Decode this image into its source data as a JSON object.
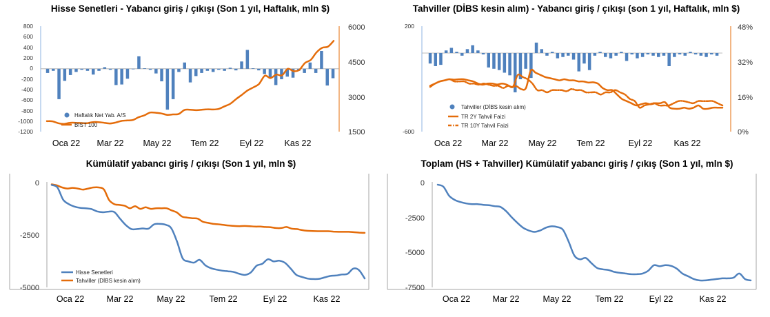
{
  "colors": {
    "blue": "#4F81BD",
    "orange": "#E46C0A",
    "axis": "#8DB3E2",
    "grid": "#A6A6A6"
  },
  "chart_data": [
    {
      "id": "c1",
      "type": "bar",
      "title": "Hisse Senetleri - Yabancı giriş / çıkışı (Son 1 yıl, Haftalık, mln $)",
      "x_ticks": [
        "Oca 22",
        "Mar 22",
        "May 22",
        "Tem 22",
        "Eyl 22",
        "Kas 22"
      ],
      "y_left_ticks": [
        "800",
        "600",
        "400",
        "200",
        "0",
        "-200",
        "-400",
        "-600",
        "-800",
        "-1000",
        "-1200"
      ],
      "y_right_ticks": [
        "6000",
        "4500",
        "3000",
        "1500"
      ],
      "ylim_left": [
        -1200,
        800
      ],
      "ylim_right": [
        1500,
        6000
      ],
      "legend": [
        "Haftalık Net Yab. A/S",
        "BIST 100"
      ],
      "series": [
        {
          "name": "Haftalık Net Yab. A/S",
          "type": "bar",
          "axis": "left",
          "values": [
            -80,
            -40,
            -580,
            -230,
            -120,
            -60,
            -20,
            -40,
            -110,
            -40,
            30,
            -20,
            -310,
            -300,
            -190,
            -10,
            240,
            10,
            -20,
            -90,
            -240,
            -780,
            -580,
            -60,
            120,
            -260,
            -140,
            -80,
            -40,
            -60,
            -20,
            -40,
            20,
            -30,
            140,
            360,
            10,
            -30,
            -100,
            -180,
            -310,
            -200,
            -150,
            -170,
            -40,
            -80,
            120,
            -80,
            340,
            -320,
            -180
          ]
        },
        {
          "name": "BIST 100",
          "type": "line",
          "axis": "right",
          "values": [
            1950,
            1940,
            1860,
            1830,
            1880,
            1880,
            1870,
            1860,
            1910,
            1910,
            1880,
            1850,
            1890,
            1960,
            1980,
            2000,
            2120,
            2200,
            2320,
            2310,
            2280,
            2220,
            2240,
            2260,
            2430,
            2440,
            2420,
            2440,
            2460,
            2450,
            2480,
            2590,
            2700,
            2900,
            3080,
            3270,
            3400,
            3550,
            3900,
            3800,
            3950,
            3920,
            4200,
            4100,
            4150,
            4450,
            4580,
            4900,
            5100,
            5150,
            5400
          ]
        }
      ]
    },
    {
      "id": "c2",
      "type": "bar",
      "title": "Tahviller (DİBS kesin alım) - Yabancı giriş / çıkışı (son 1 yıl, Haftalık, mln $)",
      "x_ticks": [
        "Oca 22",
        "Mar 22",
        "May 22",
        "Tem 22",
        "Eyl 22",
        "Kas 22"
      ],
      "y_left_ticks": [
        "200",
        "-600"
      ],
      "y_right_ticks": [
        "48%",
        "32%",
        "16%",
        "0%"
      ],
      "ylim_left": [
        -600,
        200
      ],
      "ylim_right": [
        0,
        48
      ],
      "legend": [
        "Tahviller (DİBS kesin alım)",
        "TR 2Y Tahvil Faizi",
        "TR 10Y Tahvil Faizi"
      ],
      "series": [
        {
          "name": "Tahviller (DİBS kesin alım)",
          "type": "bar",
          "axis": "left",
          "values": [
            -80,
            -100,
            -90,
            20,
            40,
            10,
            -20,
            30,
            60,
            20,
            -10,
            -110,
            -120,
            -130,
            -150,
            -170,
            -300,
            -200,
            -120,
            -190,
            80,
            30,
            -20,
            10,
            -40,
            -30,
            -20,
            -50,
            -140,
            -80,
            -130,
            -20,
            10,
            -30,
            -40,
            -20,
            10,
            -60,
            -10,
            -40,
            -30,
            -10,
            -20,
            -30,
            -20,
            -100,
            -30,
            -10,
            -20,
            10,
            -10,
            -20,
            -30,
            -10,
            -20
          ]
        },
        {
          "name": "TR 2Y Tahvil Faizi",
          "type": "line",
          "axis": "right",
          "values": [
            21,
            22,
            23,
            23.5,
            24,
            23.8,
            24,
            24,
            23.5,
            23,
            22,
            21.5,
            22,
            22,
            21.6,
            22,
            21.5,
            20.5,
            20.8,
            19.5,
            20,
            28,
            27,
            26,
            25,
            24.5,
            24,
            23.5,
            24,
            23.5,
            23.5,
            23,
            23,
            22.5,
            22.6,
            22,
            20,
            19,
            19,
            17,
            15,
            14,
            13,
            12,
            12.5,
            13,
            12.5,
            13,
            13,
            13.5,
            11,
            10.5,
            10.5,
            11,
            10.5,
            11,
            12,
            10.5,
            10.5,
            11,
            11,
            11
          ]
        },
        {
          "name": "TR 10Y Tahvil Faizi",
          "type": "line",
          "axis": "right",
          "values": [
            20.5,
            22,
            23,
            23.5,
            24,
            23,
            23,
            23,
            22,
            22,
            21.5,
            22,
            21.5,
            21,
            21,
            20,
            21,
            20.5,
            26,
            25,
            24,
            22,
            19,
            19,
            18,
            19,
            19,
            19,
            18.5,
            19.5,
            19,
            19,
            18,
            18,
            18,
            17,
            18,
            18,
            19,
            18,
            17,
            15,
            14,
            11,
            12,
            12.5,
            13,
            12,
            12,
            12,
            13,
            14,
            14,
            13.5,
            13,
            14,
            14,
            14,
            14,
            13,
            12
          ]
        }
      ]
    },
    {
      "id": "c3",
      "type": "line",
      "title": "Kümülatif yabancı giriş / çıkışı (Son 1 yıl, mln $)",
      "x_ticks": [
        "Oca 22",
        "Mar 22",
        "May 22",
        "Tem 22",
        "Eyl 22",
        "Kas 22"
      ],
      "y_ticks": [
        "0",
        "-2500",
        "-5000"
      ],
      "ylim": [
        -5000,
        0
      ],
      "legend": [
        "Hisse Senetleri",
        "Tahviller (DİBS kesin alım)"
      ],
      "series": [
        {
          "name": "Hisse Senetleri",
          "values": [
            -80,
            -200,
            -780,
            -1000,
            -1120,
            -1180,
            -1200,
            -1240,
            -1350,
            -1390,
            -1360,
            -1380,
            -1700,
            -2000,
            -2200,
            -2200,
            -2170,
            -2180,
            -1970,
            -1950,
            -1990,
            -2150,
            -2780,
            -3600,
            -3750,
            -3810,
            -3680,
            -3940,
            -4080,
            -4150,
            -4200,
            -4230,
            -4260,
            -4350,
            -4400,
            -4280,
            -3960,
            -3870,
            -3650,
            -3750,
            -3720,
            -3820,
            -4100,
            -4400,
            -4500,
            -4580,
            -4600,
            -4590,
            -4520,
            -4450,
            -4430,
            -4380,
            -4350,
            -4100,
            -4170,
            -4570
          ]
        },
        {
          "name": "Tahviller (DİBS kesin alım)",
          "values": [
            -50,
            -100,
            -200,
            -250,
            -220,
            -250,
            -300,
            -250,
            -200,
            -200,
            -290,
            -800,
            -1000,
            -1040,
            -1080,
            -1200,
            -1100,
            -1230,
            -1150,
            -1230,
            -1200,
            -1200,
            -1200,
            -1300,
            -1400,
            -1600,
            -1650,
            -1680,
            -1700,
            -1850,
            -1900,
            -1950,
            -1970,
            -2000,
            -2030,
            -2050,
            -2060,
            -2050,
            -2060,
            -2080,
            -2080,
            -2100,
            -2110,
            -2150,
            -2150,
            -2100,
            -2180,
            -2200,
            -2250,
            -2280,
            -2290,
            -2300,
            -2300,
            -2300,
            -2320,
            -2330,
            -2330,
            -2330,
            -2350,
            -2370,
            -2380
          ]
        }
      ]
    },
    {
      "id": "c4",
      "type": "line",
      "title": "Toplam (HS + Tahviller) Kümülatif yabancı giriş / çıkış (Son 1 yıl, mln $)",
      "x_ticks": [
        "Oca 22",
        "Mar 22",
        "May 22",
        "Tem 22",
        "Eyl 22",
        "Kas 22"
      ],
      "y_ticks": [
        "0",
        "-2500",
        "-5000",
        "-7500"
      ],
      "ylim": [
        -7500,
        0
      ],
      "series": [
        {
          "name": "Toplam",
          "values": [
            -100,
            -250,
            -900,
            -1200,
            -1350,
            -1450,
            -1500,
            -1500,
            -1550,
            -1580,
            -1650,
            -1700,
            -2000,
            -2450,
            -2850,
            -3200,
            -3400,
            -3500,
            -3400,
            -3200,
            -3100,
            -3150,
            -3350,
            -4200,
            -5200,
            -5480,
            -5380,
            -5750,
            -6100,
            -6200,
            -6250,
            -6380,
            -6450,
            -6500,
            -6550,
            -6550,
            -6500,
            -6300,
            -5900,
            -5980,
            -5900,
            -5950,
            -6150,
            -6500,
            -6700,
            -6900,
            -7000,
            -7000,
            -6950,
            -6900,
            -6850,
            -6850,
            -6800,
            -6500,
            -6900,
            -7000
          ]
        }
      ]
    }
  ]
}
